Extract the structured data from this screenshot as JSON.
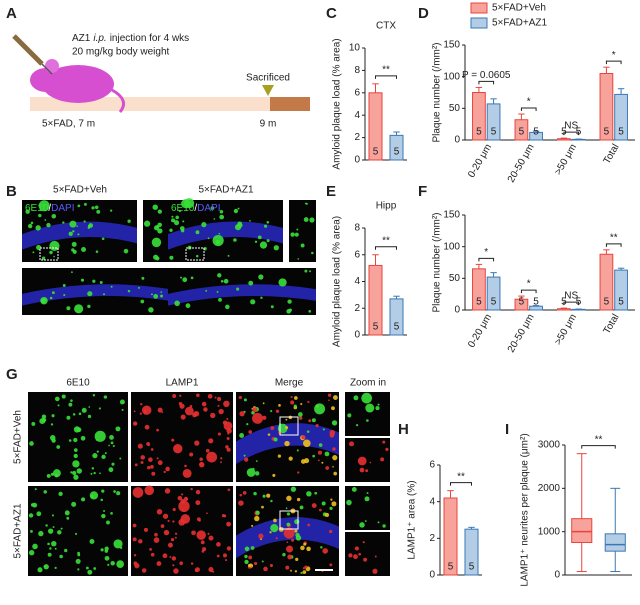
{
  "panel_labels": [
    "A",
    "B",
    "C",
    "D",
    "E",
    "F",
    "G",
    "H",
    "I"
  ],
  "panel_A": {
    "line1": [
      "AZ1",
      "i.p.",
      "injection for 4 wks"
    ],
    "line2": "20 mg/kg body weight",
    "start": "5×FAD, 7 m",
    "end_event": "Sacrificed",
    "end": "9 m"
  },
  "panel_B": {
    "groups": [
      "5×FAD+Veh",
      "5×FAD+AZ1"
    ],
    "stain": [
      "6E10",
      "/",
      "DAPI"
    ]
  },
  "panel_G": {
    "columns": [
      "6E10",
      "LAMP1",
      "Merge",
      "Zoom in"
    ],
    "rows": [
      "5×FAD+Veh",
      "5×FAD+AZ1"
    ]
  },
  "chart_data": [
    {
      "type": "bar",
      "title": "CTX",
      "ylabel": "Amyloid plaque load (% area)",
      "ylim": [
        0,
        10
      ],
      "yticks": [
        0,
        2,
        4,
        6,
        8,
        10
      ],
      "series": [
        {
          "color": "#e8453c",
          "values": [
            6.0
          ],
          "errors": [
            0.8
          ]
        },
        {
          "color": "#3a78b5",
          "values": [
            2.2
          ],
          "errors": [
            0.3
          ]
        }
      ],
      "n": 5,
      "annotation": "**"
    },
    {
      "type": "bar",
      "ylabel": "Plaque number (/mm²)",
      "ylim": [
        0,
        150
      ],
      "yticks": [
        0,
        50,
        100,
        150
      ],
      "categories": [
        "0-20 μm",
        "20-50 μm",
        ">50 μm",
        "Total"
      ],
      "series": [
        {
          "name": "5×FAD+Veh",
          "color": "#e8453c",
          "values": [
            75,
            32,
            2,
            105
          ],
          "errors": [
            8,
            9,
            1,
            10
          ]
        },
        {
          "name": "5×FAD+AZ1",
          "color": "#3a78b5",
          "values": [
            57,
            12,
            1,
            72
          ],
          "errors": [
            8,
            2,
            0.5,
            9
          ]
        }
      ],
      "n": 5,
      "annotations": [
        "P = 0.0605",
        "*",
        "NS",
        "*"
      ]
    },
    {
      "type": "bar",
      "title": "Hipp",
      "ylabel": "Amyloid plaque load (% area)",
      "ylim": [
        0,
        8
      ],
      "yticks": [
        0,
        2,
        4,
        6,
        8
      ],
      "series": [
        {
          "color": "#e8453c",
          "values": [
            5.2
          ],
          "errors": [
            0.8
          ]
        },
        {
          "color": "#3a78b5",
          "values": [
            2.7
          ],
          "errors": [
            0.2
          ]
        }
      ],
      "n": 5,
      "annotation": "**"
    },
    {
      "type": "bar",
      "ylabel": "Plaque number (/mm²)",
      "ylim": [
        0,
        150
      ],
      "yticks": [
        0,
        50,
        100,
        150
      ],
      "categories": [
        "0-20 μm",
        "20-50 μm",
        ">50 μm",
        "Total"
      ],
      "series": [
        {
          "color": "#e8453c",
          "values": [
            65,
            17,
            2,
            88
          ],
          "errors": [
            7,
            5,
            1,
            7
          ]
        },
        {
          "color": "#3a78b5",
          "values": [
            52,
            6,
            1,
            63
          ],
          "errors": [
            7,
            1,
            0.5,
            3
          ]
        }
      ],
      "n": 5,
      "annotations": [
        "*",
        "*",
        "NS",
        "**"
      ]
    },
    {
      "type": "bar",
      "ylabel": "LAMP1⁺ area (%)",
      "ylim": [
        0,
        6
      ],
      "yticks": [
        0,
        2,
        4,
        6
      ],
      "series": [
        {
          "color": "#e8453c",
          "values": [
            4.2
          ],
          "errors": [
            0.4
          ]
        },
        {
          "color": "#3a78b5",
          "values": [
            2.5
          ],
          "errors": [
            0.1
          ]
        }
      ],
      "n": 5,
      "annotation": "**"
    },
    {
      "type": "box",
      "ylabel": "LAMP1⁺ neurites per plaque (μm²)",
      "ylim": [
        0,
        3000
      ],
      "yticks": [
        0,
        1000,
        2000,
        3000
      ],
      "series": [
        {
          "color": "#e8453c",
          "whisker_low": 80,
          "q1": 750,
          "median": 1000,
          "q3": 1300,
          "whisker_high": 2800
        },
        {
          "color": "#3a78b5",
          "whisker_low": 80,
          "q1": 550,
          "median": 700,
          "q3": 950,
          "whisker_high": 2000
        }
      ],
      "annotation": "**"
    }
  ]
}
